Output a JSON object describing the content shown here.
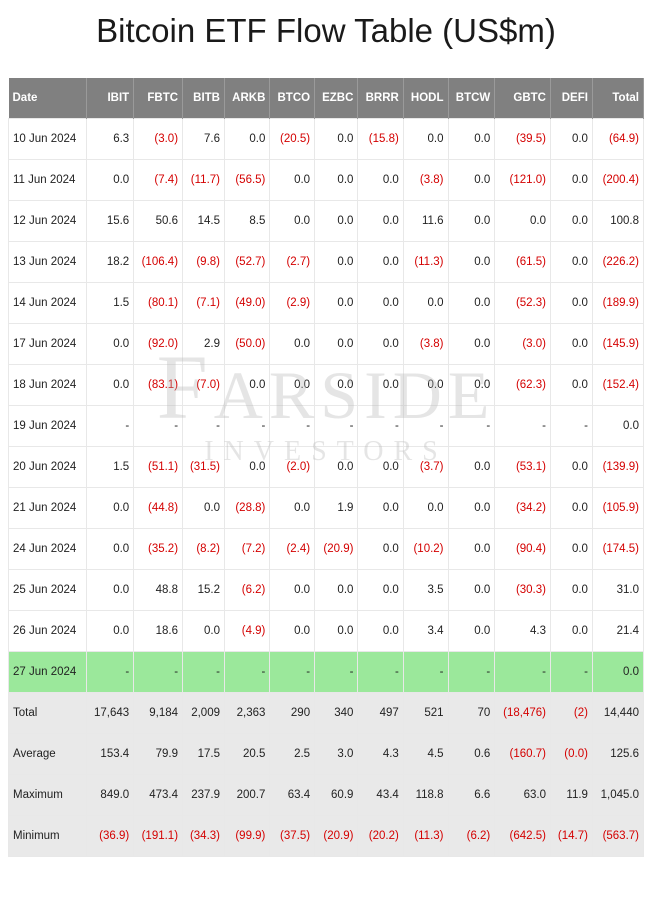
{
  "title": "Bitcoin ETF Flow Table (US$m)",
  "watermark": {
    "line1_first": "F",
    "line1_rest": "ARSIDE",
    "line2": "INVESTORS"
  },
  "table": {
    "columns": [
      "Date",
      "IBIT",
      "FBTC",
      "BITB",
      "ARKB",
      "BTCO",
      "EZBC",
      "BRRR",
      "HODL",
      "BTCW",
      "GBTC",
      "DEFI",
      "Total"
    ],
    "rows": [
      {
        "date": "10 Jun 2024",
        "vals": [
          6.3,
          -3.0,
          7.6,
          0.0,
          -20.5,
          0.0,
          -15.8,
          0.0,
          0.0,
          -39.5,
          0.0,
          -64.9
        ]
      },
      {
        "date": "11 Jun 2024",
        "vals": [
          0.0,
          -7.4,
          -11.7,
          -56.5,
          0.0,
          0.0,
          0.0,
          -3.8,
          0.0,
          -121.0,
          0.0,
          -200.4
        ]
      },
      {
        "date": "12 Jun 2024",
        "vals": [
          15.6,
          50.6,
          14.5,
          8.5,
          0.0,
          0.0,
          0.0,
          11.6,
          0.0,
          0.0,
          0.0,
          100.8
        ]
      },
      {
        "date": "13 Jun 2024",
        "vals": [
          18.2,
          -106.4,
          -9.8,
          -52.7,
          -2.7,
          0.0,
          0.0,
          -11.3,
          0.0,
          -61.5,
          0.0,
          -226.2
        ]
      },
      {
        "date": "14 Jun 2024",
        "vals": [
          1.5,
          -80.1,
          -7.1,
          -49.0,
          -2.9,
          0.0,
          0.0,
          0.0,
          0.0,
          -52.3,
          0.0,
          -189.9
        ]
      },
      {
        "date": "17 Jun 2024",
        "vals": [
          0.0,
          -92.0,
          2.9,
          -50.0,
          0.0,
          0.0,
          0.0,
          -3.8,
          0.0,
          -3.0,
          0.0,
          -145.9
        ]
      },
      {
        "date": "18 Jun 2024",
        "vals": [
          0.0,
          -83.1,
          -7.0,
          0.0,
          0.0,
          0.0,
          0.0,
          0.0,
          0.0,
          -62.3,
          0.0,
          -152.4
        ]
      },
      {
        "date": "19 Jun 2024",
        "vals": [
          null,
          null,
          null,
          null,
          null,
          null,
          null,
          null,
          null,
          null,
          null,
          0.0
        ]
      },
      {
        "date": "20 Jun 2024",
        "vals": [
          1.5,
          -51.1,
          -31.5,
          0.0,
          -2.0,
          0.0,
          0.0,
          -3.7,
          0.0,
          -53.1,
          0.0,
          -139.9
        ]
      },
      {
        "date": "21 Jun 2024",
        "vals": [
          0.0,
          -44.8,
          0.0,
          -28.8,
          0.0,
          1.9,
          0.0,
          0.0,
          0.0,
          -34.2,
          0.0,
          -105.9
        ]
      },
      {
        "date": "24 Jun 2024",
        "vals": [
          0.0,
          -35.2,
          -8.2,
          -7.2,
          -2.4,
          -20.9,
          0.0,
          -10.2,
          0.0,
          -90.4,
          0.0,
          -174.5
        ]
      },
      {
        "date": "25 Jun 2024",
        "vals": [
          0.0,
          48.8,
          15.2,
          -6.2,
          0.0,
          0.0,
          0.0,
          3.5,
          0.0,
          -30.3,
          0.0,
          31.0
        ]
      },
      {
        "date": "26 Jun 2024",
        "vals": [
          0.0,
          18.6,
          0.0,
          -4.9,
          0.0,
          0.0,
          0.0,
          3.4,
          0.0,
          4.3,
          0.0,
          21.4
        ]
      },
      {
        "date": "27 Jun 2024",
        "highlight": true,
        "vals": [
          null,
          null,
          null,
          null,
          null,
          null,
          null,
          null,
          null,
          null,
          null,
          0.0
        ]
      }
    ],
    "summary": [
      {
        "label": "Total",
        "vals": [
          "17,643",
          "9,184",
          "2,009",
          "2,363",
          "290",
          "340",
          "497",
          "521",
          "70",
          "(18,476)",
          "(2)",
          "14,440"
        ]
      },
      {
        "label": "Average",
        "vals": [
          "153.4",
          "79.9",
          "17.5",
          "20.5",
          "2.5",
          "3.0",
          "4.3",
          "4.5",
          "0.6",
          "(160.7)",
          "(0.0)",
          "125.6"
        ]
      },
      {
        "label": "Maximum",
        "vals": [
          "849.0",
          "473.4",
          "237.9",
          "200.7",
          "63.4",
          "60.9",
          "43.4",
          "118.8",
          "6.6",
          "63.0",
          "11.9",
          "1,045.0"
        ]
      },
      {
        "label": "Minimum",
        "vals": [
          "(36.9)",
          "(191.1)",
          "(34.3)",
          "(99.9)",
          "(37.5)",
          "(20.9)",
          "(20.2)",
          "(11.3)",
          "(6.2)",
          "(642.5)",
          "(14.7)",
          "(563.7)"
        ]
      }
    ]
  }
}
